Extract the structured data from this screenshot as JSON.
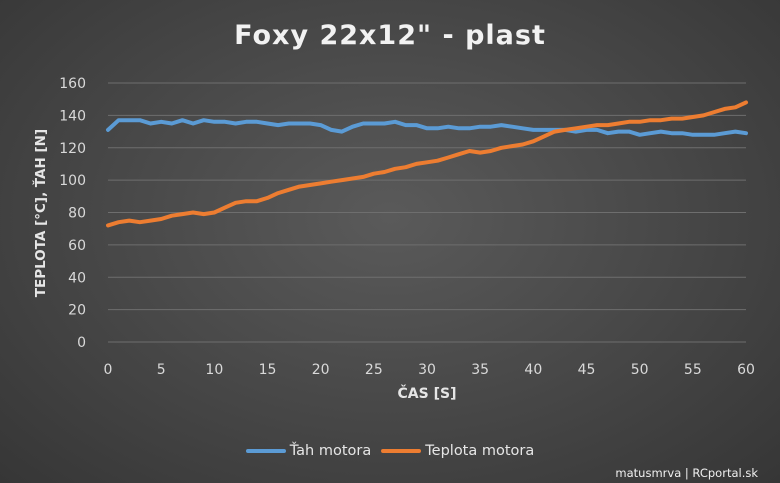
{
  "chart_data": {
    "type": "line",
    "title": "Foxy 22x12\" - plast",
    "xlabel": "ČAS [S]",
    "ylabel": "TEPLOTA [°C], ŤAH [N]",
    "xlim": [
      0,
      60
    ],
    "ylim": [
      0,
      160
    ],
    "x_ticks": [
      "0",
      "5",
      "10",
      "15",
      "20",
      "25",
      "30",
      "35",
      "40",
      "45",
      "50",
      "55",
      "60"
    ],
    "y_ticks": [
      "0",
      "20",
      "40",
      "60",
      "80",
      "100",
      "120",
      "140",
      "160"
    ],
    "grid": "horizontal",
    "legend_position": "bottom",
    "x": [
      0,
      1,
      2,
      3,
      4,
      5,
      6,
      7,
      8,
      9,
      10,
      11,
      12,
      13,
      14,
      15,
      16,
      17,
      18,
      19,
      20,
      21,
      22,
      23,
      24,
      25,
      26,
      27,
      28,
      29,
      30,
      31,
      32,
      33,
      34,
      35,
      36,
      37,
      38,
      39,
      40,
      41,
      42,
      43,
      44,
      45,
      46,
      47,
      48,
      49,
      50,
      51,
      52,
      53,
      54,
      55,
      56,
      57,
      58,
      59,
      60
    ],
    "series": [
      {
        "name": "Ťah motora",
        "color": "#5b9bd5",
        "values": [
          131,
          137,
          137,
          137,
          135,
          136,
          135,
          137,
          135,
          137,
          136,
          136,
          135,
          136,
          136,
          135,
          134,
          135,
          135,
          135,
          134,
          131,
          130,
          133,
          135,
          135,
          135,
          136,
          134,
          134,
          132,
          132,
          133,
          132,
          132,
          133,
          133,
          134,
          133,
          132,
          131,
          131,
          131,
          131,
          130,
          131,
          131,
          129,
          130,
          130,
          128,
          129,
          130,
          129,
          129,
          128,
          128,
          128,
          129,
          130,
          129
        ]
      },
      {
        "name": "Teplota motora",
        "color": "#ed7d31",
        "values": [
          72,
          74,
          75,
          74,
          75,
          76,
          78,
          79,
          80,
          79,
          80,
          83,
          86,
          87,
          87,
          89,
          92,
          94,
          96,
          97,
          98,
          99,
          100,
          101,
          102,
          104,
          105,
          107,
          108,
          110,
          111,
          112,
          114,
          116,
          118,
          117,
          118,
          120,
          121,
          122,
          124,
          127,
          130,
          131,
          132,
          133,
          134,
          134,
          135,
          136,
          136,
          137,
          137,
          138,
          138,
          139,
          140,
          142,
          144,
          145,
          148
        ]
      }
    ]
  },
  "credit": "matusmrva | RCportal.sk"
}
